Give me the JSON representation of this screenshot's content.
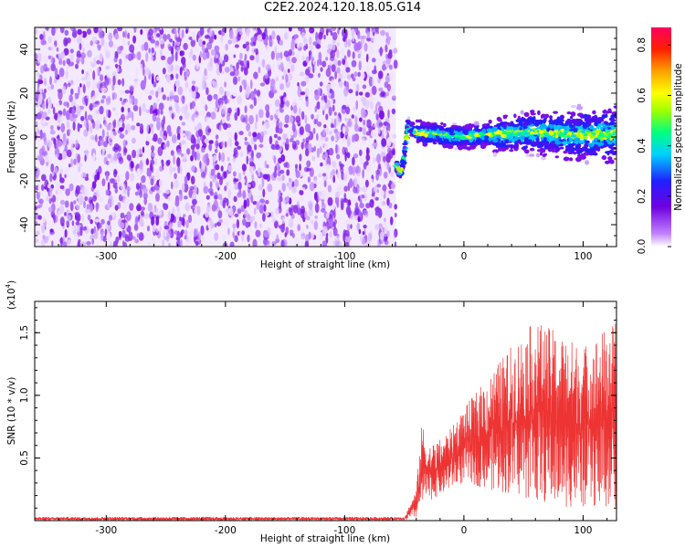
{
  "title": "C2E2.2024.120.18.05.G14",
  "colors": {
    "snr_line": "#ee3333",
    "spectrogram_noise": "#8a2be2",
    "colorbar": [
      "#ffffff",
      "#c080ff",
      "#7000e0",
      "#2020ff",
      "#00d0ff",
      "#00ff80",
      "#a0ff00",
      "#ffff00",
      "#ffa000",
      "#ff2000",
      "#ff0060"
    ]
  },
  "chart_data": [
    {
      "type": "heatmap",
      "title": "",
      "xlabel": "Height of straight line (km)",
      "ylabel": "Frequency (Hz)",
      "xlim": [
        -360,
        128
      ],
      "ylim": [
        -50,
        50
      ],
      "xticks": [
        "-300",
        "-200",
        "-100",
        "0",
        "100"
      ],
      "yticks": [
        "-40",
        "-20",
        "0",
        "20",
        "40"
      ],
      "colorbar": {
        "label": "Normalized spectral amplitude",
        "range": [
          0.0,
          0.87
        ],
        "ticks": [
          "0.0",
          "0.2",
          "0.4",
          "0.6",
          "0.8"
        ]
      },
      "noise_region_x": [
        -360,
        -57
      ],
      "signal": {
        "x_start": -57,
        "description_points_x": [
          -57,
          -53,
          -50,
          -47,
          -40,
          -20,
          0,
          20,
          60,
          100,
          128
        ],
        "description_points_y": [
          -12,
          -17,
          -8,
          5,
          2,
          1,
          0,
          1,
          2,
          1,
          1
        ]
      }
    },
    {
      "type": "line",
      "title": "",
      "xlabel": "Height of straight line (km)",
      "ylabel": "SNR (10 * v/v)",
      "scale_note": "(x10",
      "scale_exp": "4",
      "scale_close": ")",
      "xlim": [
        -360,
        128
      ],
      "ylim": [
        0,
        17500
      ],
      "xticks": [
        "-300",
        "-200",
        "-100",
        "0",
        "100"
      ],
      "yticks": [
        "0.5",
        "1.0",
        "1.5"
      ],
      "series": [
        {
          "envelope_x": [
            -360,
            -50,
            -40,
            -35,
            -30,
            -20,
            -10,
            0,
            20,
            40,
            60,
            80,
            100,
            128
          ],
          "envelope_low": [
            0,
            0,
            200,
            1000,
            1500,
            2000,
            2500,
            3000,
            2500,
            2000,
            1500,
            1000,
            1000,
            1000
          ],
          "envelope_high": [
            300,
            300,
            2500,
            8000,
            6000,
            6500,
            7500,
            9000,
            11500,
            14000,
            16000,
            15000,
            14000,
            16000
          ]
        }
      ]
    }
  ]
}
